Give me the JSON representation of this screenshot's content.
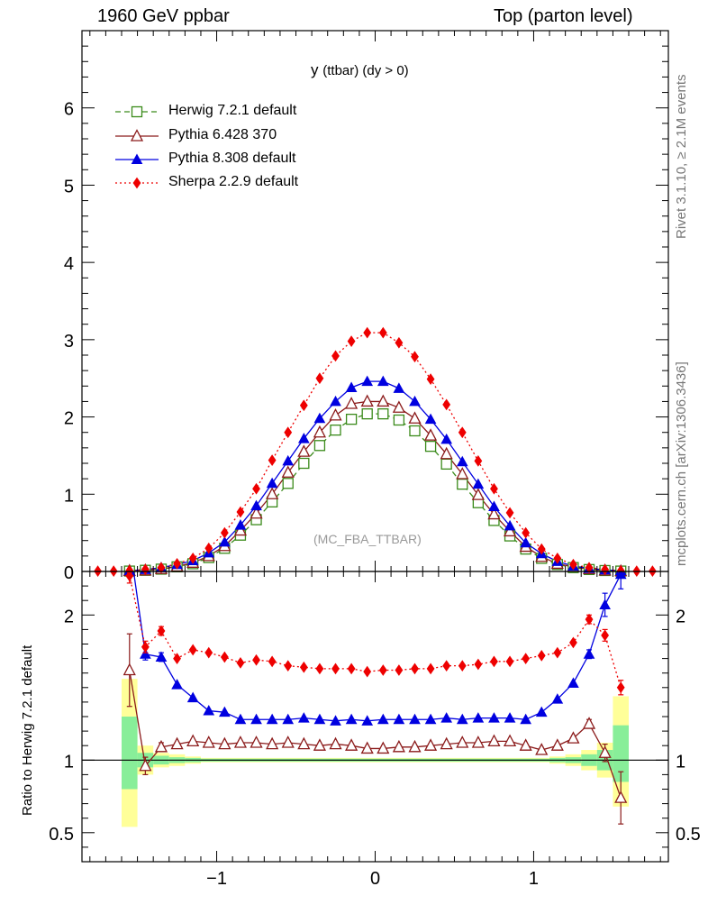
{
  "header": {
    "left": "1960 GeV ppbar",
    "right": "Top (parton level)"
  },
  "side_text": {
    "rivet": "Rivet 3.1.10, ≥ 2.1M events",
    "mcplots": "mcplots.cern.ch [arXiv:1306.3436]"
  },
  "chart_data": {
    "type": "line",
    "title_main": "y",
    "title_sub": "(ttbar) (dy > 0)",
    "analysis_label": "(MC_FBA_TTBAR)",
    "xlim": [
      -1.85,
      1.85
    ],
    "x_ticks": [
      "−1",
      "0",
      "1"
    ],
    "main": {
      "ylim": [
        0,
        7
      ],
      "y_ticks": [
        "0",
        "1",
        "2",
        "3",
        "4",
        "5",
        "6"
      ]
    },
    "ratio": {
      "ylabel": "Ratio to Herwig 7.2.1 default",
      "ylim": [
        0.3,
        2.3
      ],
      "y_ticks": [
        "0.5",
        "1",
        "2"
      ],
      "band": [
        {
          "x0": -1.6,
          "x1": -1.5,
          "g0": 0.8,
          "g1": 1.3,
          "y0": 0.54,
          "y1": 1.56
        },
        {
          "x0": -1.5,
          "x1": -1.4,
          "g0": 0.95,
          "g1": 1.05,
          "y0": 0.9,
          "y1": 1.1
        },
        {
          "x0": -1.4,
          "x1": -1.3,
          "g0": 0.97,
          "g1": 1.03,
          "y0": 0.95,
          "y1": 1.05
        },
        {
          "x0": -1.3,
          "x1": -1.2,
          "g0": 0.98,
          "g1": 1.02,
          "y0": 0.96,
          "y1": 1.04
        },
        {
          "x0": -1.2,
          "x1": -1.1,
          "g0": 0.985,
          "g1": 1.015,
          "y0": 0.975,
          "y1": 1.025
        },
        {
          "x0": -1.1,
          "x1": 1.1,
          "g0": 0.99,
          "g1": 1.01,
          "y0": 0.985,
          "y1": 1.015
        },
        {
          "x0": 1.1,
          "x1": 1.2,
          "g0": 0.985,
          "g1": 1.015,
          "y0": 0.975,
          "y1": 1.025
        },
        {
          "x0": 1.2,
          "x1": 1.3,
          "g0": 0.98,
          "g1": 1.02,
          "y0": 0.96,
          "y1": 1.04
        },
        {
          "x0": 1.3,
          "x1": 1.4,
          "g0": 0.96,
          "g1": 1.04,
          "y0": 0.93,
          "y1": 1.07
        },
        {
          "x0": 1.4,
          "x1": 1.5,
          "g0": 0.93,
          "g1": 1.07,
          "y0": 0.88,
          "y1": 1.12
        },
        {
          "x0": 1.5,
          "x1": 1.6,
          "g0": 0.85,
          "g1": 1.24,
          "y0": 0.68,
          "y1": 1.44
        }
      ]
    },
    "x": [
      -1.55,
      -1.45,
      -1.35,
      -1.25,
      -1.15,
      -1.05,
      -0.95,
      -0.85,
      -0.75,
      -0.65,
      -0.55,
      -0.45,
      -0.35,
      -0.25,
      -0.15,
      -0.05,
      0.05,
      0.15,
      0.25,
      0.35,
      0.45,
      0.55,
      0.65,
      0.75,
      0.85,
      0.95,
      1.05,
      1.15,
      1.25,
      1.35,
      1.45,
      1.55
    ],
    "series": [
      {
        "name": "Herwig 7.2.1 default",
        "color": "#3a8a1a",
        "marker": "open-square",
        "dash": "6,4",
        "values": [
          0.005,
          0.015,
          0.03,
          0.06,
          0.1,
          0.18,
          0.3,
          0.47,
          0.67,
          0.9,
          1.14,
          1.4,
          1.63,
          1.83,
          1.97,
          2.04,
          2.04,
          1.96,
          1.82,
          1.62,
          1.39,
          1.13,
          0.89,
          0.66,
          0.46,
          0.29,
          0.17,
          0.09,
          0.05,
          0.025,
          0.012,
          0.005
        ],
        "ratio": [
          1.0,
          1.0,
          1.0,
          1.0,
          1.0,
          1.0,
          1.0,
          1.0,
          1.0,
          1.0,
          1.0,
          1.0,
          1.0,
          1.0,
          1.0,
          1.0,
          1.0,
          1.0,
          1.0,
          1.0,
          1.0,
          1.0,
          1.0,
          1.0,
          1.0,
          1.0,
          1.0,
          1.0,
          1.0,
          1.0,
          1.0,
          1.0
        ]
      },
      {
        "name": "Pythia 6.428 370",
        "color": "#8b1a1a",
        "marker": "open-triangle",
        "dash": "",
        "values": [
          0.008,
          0.014,
          0.032,
          0.066,
          0.113,
          0.2,
          0.33,
          0.53,
          0.75,
          1.0,
          1.28,
          1.55,
          1.8,
          2.02,
          2.17,
          2.2,
          2.2,
          2.12,
          1.98,
          1.76,
          1.52,
          1.26,
          0.99,
          0.74,
          0.52,
          0.32,
          0.19,
          0.1,
          0.058,
          0.031,
          0.013,
          0.004
        ],
        "ratio": [
          1.62,
          0.96,
          1.09,
          1.11,
          1.13,
          1.12,
          1.11,
          1.12,
          1.12,
          1.11,
          1.12,
          1.11,
          1.1,
          1.11,
          1.1,
          1.08,
          1.08,
          1.09,
          1.09,
          1.1,
          1.11,
          1.12,
          1.12,
          1.13,
          1.13,
          1.1,
          1.07,
          1.1,
          1.15,
          1.25,
          1.05,
          0.74
        ],
        "ratio_err": [
          0.25,
          0.06,
          0.03,
          0.02,
          0.02,
          0.015,
          0.01,
          0.01,
          0.01,
          0.01,
          0.01,
          0.01,
          0.01,
          0.01,
          0.01,
          0.01,
          0.01,
          0.01,
          0.01,
          0.01,
          0.01,
          0.01,
          0.01,
          0.01,
          0.01,
          0.01,
          0.015,
          0.02,
          0.02,
          0.03,
          0.06,
          0.18
        ]
      },
      {
        "name": "Pythia 8.308 default",
        "color": "#0000e0",
        "marker": "filled-triangle",
        "dash": "",
        "values": [
          0.01,
          0.025,
          0.05,
          0.09,
          0.14,
          0.24,
          0.38,
          0.6,
          0.85,
          1.14,
          1.43,
          1.72,
          1.98,
          2.2,
          2.38,
          2.46,
          2.46,
          2.37,
          2.2,
          1.97,
          1.71,
          1.42,
          1.13,
          0.84,
          0.59,
          0.37,
          0.23,
          0.13,
          0.07,
          0.04,
          0.02,
          0.01
        ],
        "ratio": [
          2.5,
          1.73,
          1.71,
          1.52,
          1.43,
          1.34,
          1.33,
          1.28,
          1.28,
          1.28,
          1.28,
          1.29,
          1.28,
          1.27,
          1.28,
          1.27,
          1.28,
          1.28,
          1.28,
          1.28,
          1.29,
          1.28,
          1.29,
          1.29,
          1.29,
          1.28,
          1.33,
          1.42,
          1.53,
          1.73,
          2.07,
          2.28
        ],
        "ratio_err": [
          0.1,
          0.04,
          0.03,
          0.02,
          0.02,
          0.015,
          0.01,
          0.01,
          0.01,
          0.01,
          0.01,
          0.01,
          0.01,
          0.01,
          0.01,
          0.01,
          0.01,
          0.01,
          0.01,
          0.01,
          0.01,
          0.01,
          0.01,
          0.01,
          0.01,
          0.01,
          0.015,
          0.02,
          0.02,
          0.03,
          0.08,
          0.1
        ]
      },
      {
        "name": "Sherpa 2.2.9 default",
        "color": "#ee0000",
        "marker": "filled-diamond",
        "dash": "2,3",
        "values": [
          0.012,
          0.027,
          0.05,
          0.1,
          0.17,
          0.3,
          0.5,
          0.77,
          1.07,
          1.44,
          1.8,
          2.15,
          2.5,
          2.79,
          2.98,
          3.09,
          3.09,
          2.96,
          2.78,
          2.49,
          2.16,
          1.8,
          1.43,
          1.07,
          0.76,
          0.5,
          0.29,
          0.17,
          0.09,
          0.05,
          0.025,
          0.01
        ],
        "ratio": [
          2.27,
          1.78,
          1.89,
          1.7,
          1.76,
          1.74,
          1.71,
          1.67,
          1.69,
          1.68,
          1.65,
          1.64,
          1.63,
          1.63,
          1.63,
          1.61,
          1.62,
          1.62,
          1.63,
          1.63,
          1.65,
          1.65,
          1.66,
          1.68,
          1.68,
          1.7,
          1.72,
          1.74,
          1.81,
          1.97,
          1.86,
          1.5
        ],
        "ratio_err": [
          0.05,
          0.04,
          0.03,
          0.02,
          0.015,
          0.01,
          0.01,
          0.01,
          0.01,
          0.01,
          0.01,
          0.01,
          0.01,
          0.01,
          0.01,
          0.01,
          0.01,
          0.01,
          0.01,
          0.01,
          0.01,
          0.01,
          0.01,
          0.01,
          0.01,
          0.01,
          0.01,
          0.015,
          0.02,
          0.03,
          0.04,
          0.05
        ]
      }
    ]
  }
}
